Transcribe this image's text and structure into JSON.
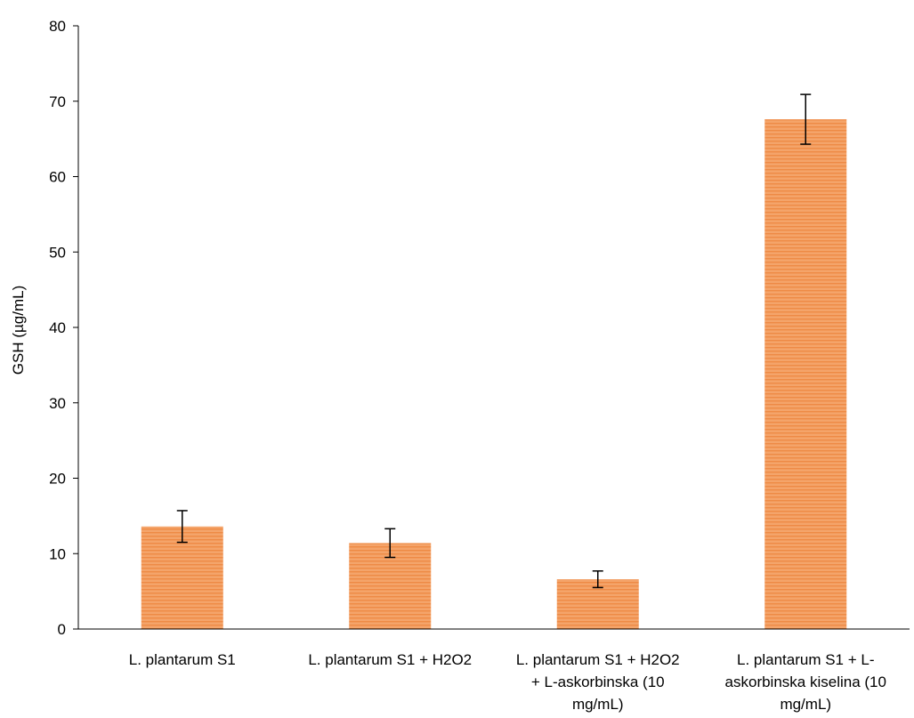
{
  "chart_data": {
    "type": "bar",
    "title": "",
    "xlabel": "",
    "ylabel": "GSH (µg/mL)",
    "ylim": [
      0,
      80
    ],
    "yticks": [
      0,
      10,
      20,
      30,
      40,
      50,
      60,
      70,
      80
    ],
    "grid": false,
    "legend": "none",
    "categories": [
      [
        "L. plantarum S1"
      ],
      [
        "L. plantarum S1 + H2O2"
      ],
      [
        "L. plantarum S1 + H2O2",
        "+ L-askorbinska (10",
        "mg/mL)"
      ],
      [
        "L. plantarum S1 + L-",
        "askorbinska kiselina (10",
        "mg/mL)"
      ]
    ],
    "values": [
      13.6,
      11.4,
      6.6,
      67.6
    ],
    "errors": [
      2.1,
      1.9,
      1.1,
      3.3
    ],
    "colors": {
      "bar_fill": "#f4a46a",
      "bar_stripe": "#ee8a45",
      "axis": "#000000",
      "error_bar": "#000000"
    }
  }
}
